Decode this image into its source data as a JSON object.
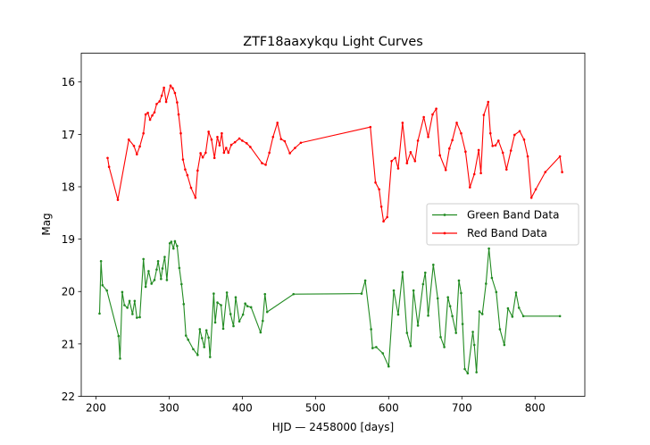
{
  "chart_data": {
    "type": "line",
    "title": "ZTF18aaxykqu Light Curves",
    "xlabel": "HJD — 2458000 [days]",
    "ylabel": "Mag",
    "xlim": [
      180,
      868
    ],
    "ylim": [
      22,
      15.45
    ],
    "y_inverted": true,
    "xticks": [
      200,
      300,
      400,
      500,
      600,
      700,
      800
    ],
    "yticks": [
      16,
      17,
      18,
      19,
      20,
      21,
      22
    ],
    "grid": false,
    "legend_position": "center-right",
    "series": [
      {
        "name": "Green Band Data",
        "color": "#228b22",
        "x": [
          205,
          207,
          209,
          215,
          231,
          233,
          236,
          239,
          243,
          246,
          250,
          253,
          256,
          260,
          265,
          268,
          272,
          276,
          280,
          283,
          285,
          289,
          291,
          294,
          297,
          301,
          303,
          306,
          308,
          311,
          314,
          317,
          320,
          323,
          326,
          333,
          339,
          342,
          345,
          348,
          351,
          354,
          356,
          361,
          363,
          366,
          371,
          374,
          379,
          384,
          388,
          391,
          396,
          401,
          404,
          407,
          412,
          425,
          428,
          431,
          434,
          470,
          563,
          568,
          576,
          578,
          583,
          592,
          600,
          607,
          613,
          619,
          625,
          630,
          634,
          640,
          647,
          650,
          654,
          661,
          667,
          671,
          676,
          681,
          684,
          687,
          692,
          696,
          699,
          701,
          704,
          708,
          715,
          717,
          720,
          724,
          728,
          733,
          737,
          741,
          747,
          752,
          758,
          763,
          769,
          774,
          778,
          784,
          834
        ],
        "y": [
          20.42,
          19.42,
          19.88,
          19.98,
          20.85,
          21.28,
          20.01,
          20.26,
          20.31,
          20.18,
          20.43,
          20.18,
          20.5,
          20.49,
          19.38,
          19.91,
          19.61,
          19.85,
          19.78,
          19.58,
          19.42,
          19.76,
          19.56,
          19.34,
          19.78,
          19.08,
          19.05,
          19.18,
          19.04,
          19.13,
          19.55,
          19.86,
          20.24,
          20.84,
          20.92,
          21.1,
          21.21,
          20.72,
          20.89,
          21.06,
          20.74,
          20.88,
          21.25,
          20.04,
          20.59,
          20.21,
          20.26,
          20.71,
          20.02,
          20.43,
          20.66,
          20.11,
          20.57,
          20.44,
          20.23,
          20.28,
          20.3,
          20.78,
          20.56,
          20.05,
          20.39,
          20.05,
          20.04,
          19.79,
          20.72,
          21.08,
          21.06,
          21.18,
          21.43,
          19.98,
          20.44,
          19.63,
          20.79,
          21.04,
          19.98,
          20.65,
          19.86,
          19.64,
          20.46,
          19.49,
          20.13,
          20.87,
          21.06,
          20.11,
          20.28,
          20.47,
          20.79,
          19.79,
          20.03,
          20.62,
          21.48,
          21.56,
          20.77,
          21.02,
          21.54,
          20.38,
          20.43,
          19.85,
          19.18,
          19.74,
          20.01,
          20.72,
          21.02,
          20.32,
          20.48,
          20.02,
          20.31,
          20.47,
          20.47
        ]
      },
      {
        "name": "Red Band Data",
        "color": "#ff0000",
        "x": [
          216,
          218,
          230,
          245,
          252,
          256,
          260,
          265,
          268,
          271,
          274,
          277,
          280,
          283,
          287,
          290,
          293,
          296,
          302,
          305,
          308,
          311,
          313,
          316,
          319,
          322,
          325,
          330,
          336,
          339,
          343,
          346,
          350,
          354,
          358,
          362,
          366,
          369,
          372,
          375,
          378,
          381,
          385,
          390,
          396,
          400,
          406,
          411,
          427,
          432,
          437,
          442,
          448,
          453,
          458,
          465,
          472,
          480,
          575,
          582,
          587,
          590,
          593,
          598,
          604,
          609,
          613,
          619,
          625,
          630,
          636,
          640,
          648,
          654,
          660,
          665,
          670,
          678,
          683,
          687,
          693,
          699,
          705,
          711,
          717,
          723,
          726,
          730,
          736,
          739,
          742,
          746,
          750,
          756,
          761,
          767,
          772,
          779,
          785,
          790,
          795,
          801,
          814,
          834,
          837
        ],
        "y": [
          17.45,
          17.62,
          18.25,
          17.1,
          17.22,
          17.38,
          17.23,
          16.98,
          16.62,
          16.59,
          16.72,
          16.64,
          16.58,
          16.42,
          16.37,
          16.26,
          16.11,
          16.38,
          16.07,
          16.12,
          16.21,
          16.39,
          16.62,
          16.98,
          17.48,
          17.67,
          17.78,
          18.02,
          18.21,
          17.69,
          17.36,
          17.44,
          17.35,
          16.95,
          17.1,
          17.45,
          17.05,
          17.21,
          16.98,
          17.35,
          17.26,
          17.35,
          17.2,
          17.15,
          17.08,
          17.12,
          17.17,
          17.24,
          17.55,
          17.58,
          17.35,
          17.05,
          16.78,
          17.09,
          17.13,
          17.36,
          17.26,
          17.16,
          16.86,
          17.92,
          18.05,
          18.38,
          18.66,
          18.58,
          17.51,
          17.45,
          17.65,
          16.78,
          17.55,
          17.34,
          17.51,
          17.12,
          16.67,
          17.05,
          16.62,
          16.51,
          17.4,
          17.68,
          17.27,
          17.11,
          16.78,
          16.98,
          17.33,
          18.01,
          17.76,
          17.3,
          17.74,
          16.63,
          16.38,
          16.98,
          17.22,
          17.21,
          17.12,
          17.35,
          17.67,
          17.31,
          17.01,
          16.94,
          17.1,
          17.42,
          18.21,
          18.05,
          17.72,
          17.42,
          17.72
        ]
      }
    ]
  }
}
